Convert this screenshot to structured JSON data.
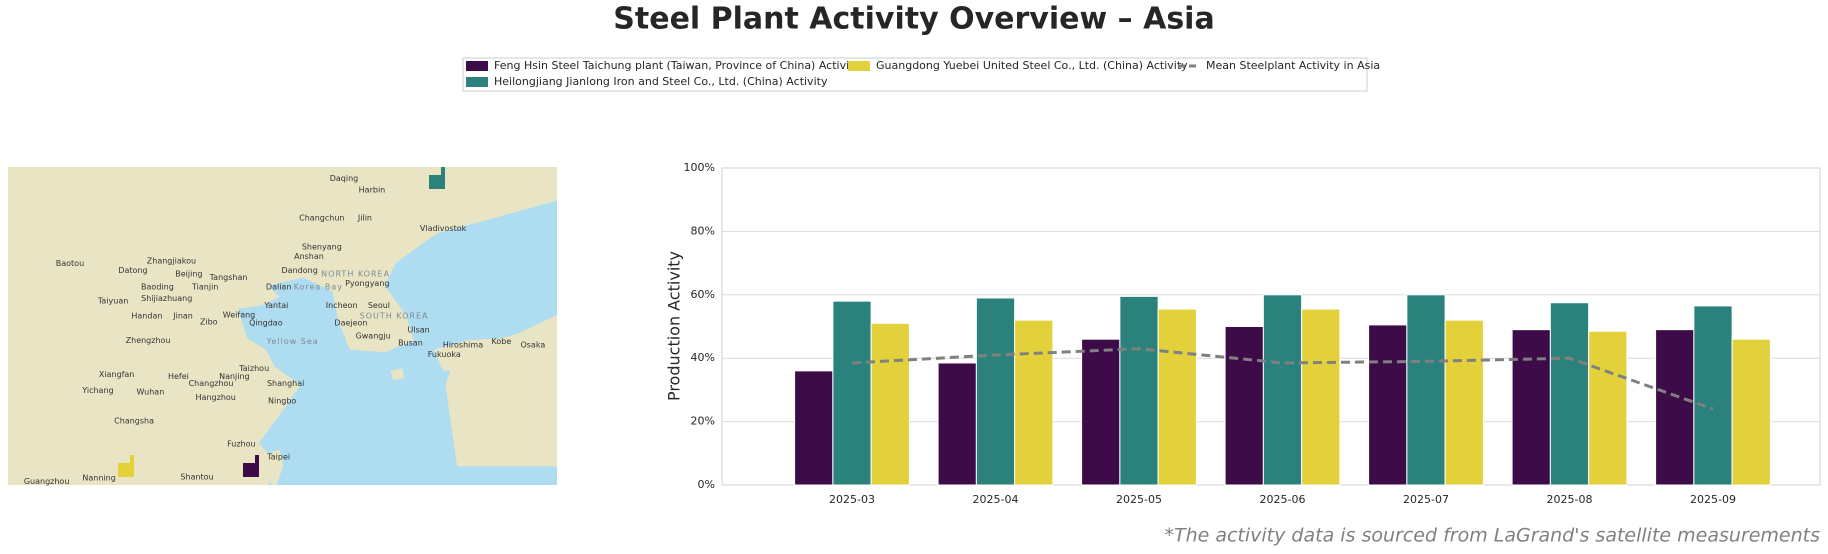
{
  "chart_data": {
    "type": "bar",
    "title": "Steel Plant Activity Overview – Asia",
    "ylabel": "Production Activity",
    "footnote": "*The activity data is sourced from LaGrand's satellite measurements",
    "categories": [
      "2025-03",
      "2025-04",
      "2025-05",
      "2025-06",
      "2025-07",
      "2025-08",
      "2025-09"
    ],
    "series": [
      {
        "name": "Feng Hsin Steel Taichung plant (Taiwan, Province of China) Activity",
        "color": "#3d0b47",
        "values": [
          36,
          38.5,
          46,
          50,
          50.5,
          49,
          49
        ]
      },
      {
        "name": "Heilongjiang Jianlong Iron and Steel Co., Ltd. (China) Activity",
        "color": "#2b827d",
        "values": [
          58,
          59,
          59.5,
          60,
          60,
          57.5,
          56.5
        ]
      },
      {
        "name": "Guangdong Yuebei United Steel Co., Ltd. (China) Activity",
        "color": "#e2d13b",
        "values": [
          51,
          52,
          55.5,
          55.5,
          52,
          48.5,
          46
        ]
      },
      {
        "name": "Mean Steelplant Activity in Asia",
        "color": "#808080",
        "type": "line",
        "style": "dashed",
        "values": [
          38.5,
          41,
          43,
          38.5,
          39,
          40,
          24
        ]
      }
    ],
    "ylim": [
      0,
      100
    ],
    "yticks": [
      {
        "value": 0,
        "label": "0%"
      },
      {
        "value": 20,
        "label": "20%"
      },
      {
        "value": 40,
        "label": "40%"
      },
      {
        "value": 60,
        "label": "60%"
      },
      {
        "value": 80,
        "label": "80%"
      },
      {
        "value": 100,
        "label": "100%"
      }
    ],
    "grid": true
  },
  "map": {
    "labels": [
      "Daqing",
      "Harbin",
      "Changchun",
      "Jilin",
      "Vladivostok",
      "Shenyang",
      "Anshan",
      "Dandong",
      "Pyongyang",
      "Baotou",
      "Zhangjiakou",
      "Datong",
      "Beijing",
      "Tangshan",
      "Baoding",
      "Tianjin",
      "Dalian",
      "Shijiazhuang",
      "Taiyuan",
      "Yantai",
      "Incheon",
      "Seoul",
      "Handan",
      "Jinan",
      "Weifang",
      "Zibo",
      "Qingdao",
      "Daejeon",
      "Zhengzhou",
      "Gwangju",
      "Ulsan",
      "Busan",
      "Fukuoka",
      "Hiroshima",
      "Kobe",
      "Osaka",
      "Xiangfan",
      "Hefei",
      "Nanjing",
      "Changzhou",
      "Shanghai",
      "Taizhou",
      "Yichang",
      "Wuhan",
      "Hangzhou",
      "Ningbo",
      "Changsha",
      "Fuzhou",
      "Taipei",
      "Shantou",
      "Guangzhou",
      "Nanning",
      "NORTH KOREA",
      "SOUTH KOREA",
      "Yellow Sea",
      "Korea Bay"
    ]
  }
}
